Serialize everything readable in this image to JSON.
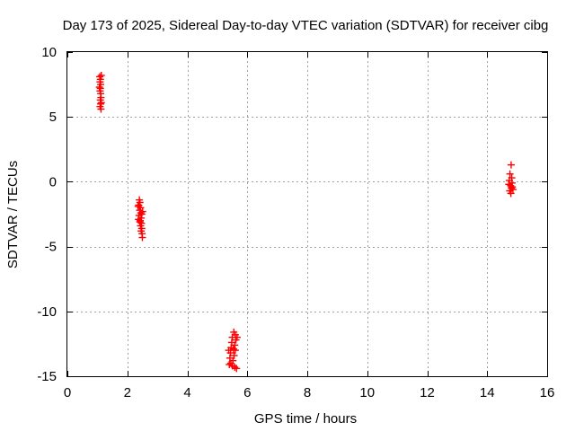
{
  "chart_data": {
    "type": "scatter",
    "title": "Day 173 of 2025, Sidereal Day-to-day VTEC variation (SDTVAR) for receiver cibg",
    "xlabel": "GPS time / hours",
    "ylabel": "SDTVAR / TECUs",
    "xlim": [
      0,
      16
    ],
    "ylim": [
      -15,
      10
    ],
    "xticks": [
      0,
      2,
      4,
      6,
      8,
      10,
      12,
      14,
      16
    ],
    "xtick_labels": [
      "0",
      "2",
      "4",
      "6",
      "8",
      "10",
      "12",
      "14",
      "16"
    ],
    "yticks": [
      10,
      5,
      0,
      -5,
      -10,
      -15
    ],
    "ytick_labels": [
      "10",
      "5",
      "0",
      "-5",
      "-10",
      "-15"
    ],
    "grid": true,
    "marker": "plus",
    "color": "#ff0000",
    "series": [
      {
        "points": [
          [
            1.08,
            8.1
          ],
          [
            1.1,
            7.9
          ],
          [
            1.09,
            7.7
          ],
          [
            1.11,
            7.5
          ],
          [
            1.1,
            7.2
          ],
          [
            1.09,
            7.0
          ],
          [
            1.11,
            6.8
          ],
          [
            1.12,
            6.5
          ],
          [
            1.1,
            6.3
          ],
          [
            1.11,
            6.0
          ],
          [
            1.09,
            5.8
          ],
          [
            1.12,
            5.6
          ],
          [
            1.13,
            8.2
          ],
          [
            1.07,
            7.3
          ],
          [
            1.13,
            6.1
          ],
          [
            2.4,
            -1.4
          ],
          [
            2.42,
            -1.6
          ],
          [
            2.38,
            -1.8
          ],
          [
            2.44,
            -2.0
          ],
          [
            2.41,
            -2.2
          ],
          [
            2.45,
            -2.4
          ],
          [
            2.39,
            -2.6
          ],
          [
            2.46,
            -2.8
          ],
          [
            2.43,
            -3.0
          ],
          [
            2.47,
            -3.2
          ],
          [
            2.44,
            -3.4
          ],
          [
            2.48,
            -3.6
          ],
          [
            2.46,
            -3.8
          ],
          [
            2.49,
            -4.0
          ],
          [
            2.5,
            -4.3
          ],
          [
            2.37,
            -2.9
          ],
          [
            2.51,
            -2.3
          ],
          [
            2.36,
            -1.9
          ],
          [
            2.48,
            -2.5
          ],
          [
            2.42,
            -3.1
          ],
          [
            5.55,
            -11.6
          ],
          [
            5.6,
            -11.8
          ],
          [
            5.5,
            -12.0
          ],
          [
            5.62,
            -12.2
          ],
          [
            5.48,
            -12.4
          ],
          [
            5.58,
            -12.6
          ],
          [
            5.46,
            -12.8
          ],
          [
            5.6,
            -13.0
          ],
          [
            5.44,
            -13.2
          ],
          [
            5.56,
            -13.4
          ],
          [
            5.42,
            -13.6
          ],
          [
            5.52,
            -13.8
          ],
          [
            5.45,
            -14.0
          ],
          [
            5.5,
            -14.2
          ],
          [
            5.58,
            -14.3
          ],
          [
            5.64,
            -14.4
          ],
          [
            5.4,
            -14.1
          ],
          [
            5.66,
            -12.0
          ],
          [
            5.38,
            -13.0
          ],
          [
            5.54,
            -12.9
          ],
          [
            14.8,
            1.3
          ],
          [
            14.76,
            0.6
          ],
          [
            14.82,
            0.3
          ],
          [
            14.74,
            0.1
          ],
          [
            14.83,
            -0.1
          ],
          [
            14.78,
            -0.3
          ],
          [
            14.81,
            -0.5
          ],
          [
            14.75,
            -0.7
          ],
          [
            14.79,
            -0.9
          ],
          [
            14.84,
            -0.4
          ],
          [
            14.72,
            -0.2
          ],
          [
            14.86,
            -0.6
          ]
        ]
      }
    ]
  }
}
